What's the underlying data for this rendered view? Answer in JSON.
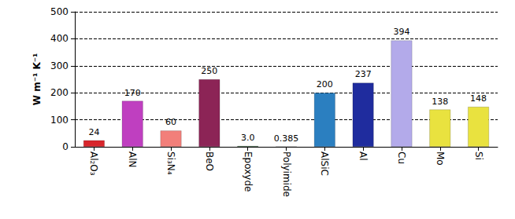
{
  "chart_data": {
    "type": "bar",
    "y_label": "W m⁻¹ K⁻¹",
    "categories": [
      "Al₂O₃",
      "AlN",
      "Si₃N₄",
      "BeO",
      "Epoxyde",
      "Polyimide",
      "AlSiC",
      "Al",
      "Cu",
      "Mo",
      "Si"
    ],
    "values": [
      24,
      170,
      60,
      250,
      3.0,
      0.385,
      200,
      237,
      394,
      138,
      148
    ],
    "value_labels": [
      "24",
      "170",
      "60",
      "250",
      "3.0",
      "0.385",
      "200",
      "237",
      "394",
      "138",
      "148"
    ],
    "colors": [
      "#d8262c",
      "#bf3fc0",
      "#f27f7a",
      "#8c2456",
      "#1e5a22",
      "#8a8a8a",
      "#2b7fc0",
      "#1f2c9e",
      "#b3aaea",
      "#e9e23f",
      "#e9e23f"
    ],
    "ylim": [
      0,
      500
    ],
    "yticks": [
      0,
      100,
      200,
      300,
      400,
      500
    ],
    "grid": true,
    "data_labels": true
  }
}
